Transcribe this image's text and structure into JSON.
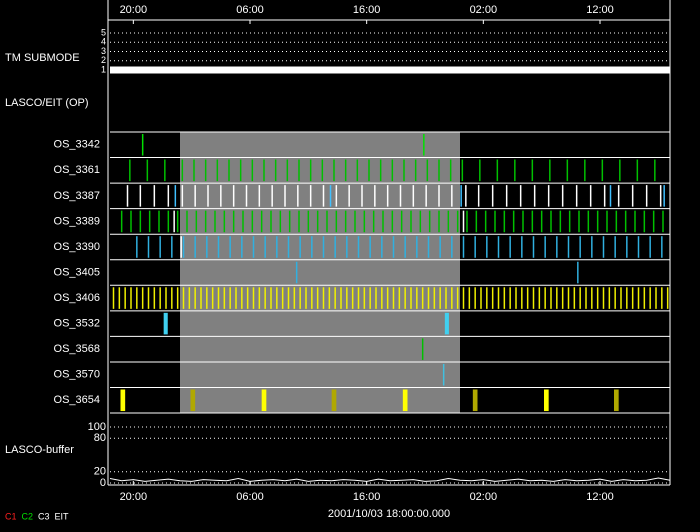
{
  "chart_data": {
    "type": "timeline",
    "xlim": [
      0,
      48
    ],
    "xticks": [
      {
        "value": 2,
        "label": "20:00"
      },
      {
        "value": 12,
        "label": "06:00"
      },
      {
        "value": 22,
        "label": "16:00"
      },
      {
        "value": 32,
        "label": "02:00"
      },
      {
        "value": 42,
        "label": "12:00"
      }
    ],
    "start_time": "2001/10/03 18:00:00.000",
    "tm_submode": {
      "label": "TM SUBMODE",
      "ylim": [
        1,
        5
      ],
      "yticks": [
        1,
        2,
        3,
        4,
        5
      ],
      "x": [
        0,
        48
      ],
      "values": [
        1,
        1
      ],
      "color": "#ffffff"
    },
    "section_label": "LASCO/EIT (OP)",
    "shade": {
      "x": [
        6,
        30
      ],
      "color": "#808080"
    },
    "rows": [
      {
        "label": "OS_3342",
        "marks": [
          {
            "color": "#00e000",
            "x": [
              2.8,
              26.9
            ]
          }
        ]
      },
      {
        "label": "OS_3361",
        "marks": [
          {
            "color": "#00c000",
            "x": [
              1.7,
              3.2,
              4.7,
              6.2,
              7.2,
              8.2,
              9.2,
              10.2,
              11.2,
              12.2,
              13.2,
              14.2,
              15.2,
              16.2,
              17.2,
              18.2,
              19.2,
              20.2,
              21.2,
              22.2,
              23.2,
              24.2,
              25.2,
              26.2,
              27.2,
              28.2,
              29.2,
              30.2,
              31.7,
              33.2,
              34.7,
              36.2,
              37.7,
              39.2,
              40.7,
              42.2,
              43.7,
              45.2,
              46.7
            ]
          }
        ]
      },
      {
        "label": "OS_3387",
        "marks": [
          {
            "color": "#ffffff",
            "x": [
              1.5,
              2.6,
              3.8,
              5.0,
              6.2,
              7.3,
              8.4,
              9.5,
              10.6,
              11.7,
              12.8,
              13.9,
              15.0,
              16.1,
              17.2,
              18.3,
              19.4,
              20.5,
              21.6,
              22.7,
              23.8,
              24.9,
              26.0,
              27.1,
              28.2,
              29.3,
              30.5,
              31.6,
              32.8,
              34.0,
              35.2,
              36.4,
              37.6,
              38.8,
              40.0,
              41.2,
              42.4,
              43.6,
              44.8,
              46.0,
              47.2
            ]
          },
          {
            "color": "#40c0ff",
            "x": [
              5.6,
              18.9,
              30.1,
              42.9,
              47.5
            ]
          }
        ]
      },
      {
        "label": "OS_3389",
        "marks": [
          {
            "color": "#00c000",
            "x": [
              1.0,
              1.8,
              2.6,
              3.4,
              4.2,
              5.0,
              5.8,
              6.6,
              7.4,
              8.2,
              9.0,
              9.8,
              10.6,
              11.4,
              12.2,
              13.0,
              13.8,
              14.6,
              15.4,
              16.2,
              17.0,
              17.8,
              18.6,
              19.4,
              20.2,
              21.0,
              21.8,
              22.6,
              23.4,
              24.2,
              25.0,
              25.8,
              26.6,
              27.4,
              28.2,
              29.0,
              29.8,
              30.6,
              31.4,
              32.2,
              33.0,
              33.8,
              34.6,
              35.4,
              36.2,
              37.0,
              37.8,
              38.6,
              39.4,
              40.2,
              41.0,
              41.8,
              42.6,
              43.4,
              44.2,
              45.0,
              45.8,
              46.6,
              47.4
            ]
          },
          {
            "color": "#ffffff",
            "x": [
              5.5,
              30.3
            ]
          }
        ]
      },
      {
        "label": "OS_3390",
        "marks": [
          {
            "color": "#30b0e0",
            "x": [
              2.3,
              3.3,
              4.3,
              5.3,
              6.3,
              7.3,
              8.3,
              9.3,
              10.3,
              11.3,
              12.3,
              13.3,
              14.3,
              15.3,
              16.3,
              17.3,
              18.3,
              19.3,
              20.3,
              21.3,
              22.3,
              23.3,
              24.3,
              25.3,
              26.3,
              27.3,
              28.3,
              29.3,
              30.3,
              31.3,
              32.3,
              33.3,
              34.3,
              35.3,
              36.3,
              37.3,
              38.3,
              39.3,
              40.3,
              41.3,
              42.3,
              43.3,
              44.3,
              45.3,
              46.3,
              47.3
            ]
          },
          {
            "color": "#ffffff",
            "x": [
              6.1
            ]
          }
        ]
      },
      {
        "label": "OS_3405",
        "marks": [
          {
            "color": "#30b0e0",
            "x": [
              16.0,
              40.1
            ]
          }
        ]
      },
      {
        "label": "OS_3406",
        "marks": [
          {
            "color": "#f0f000",
            "x": [
              0.3,
              0.8,
              1.3,
              1.8,
              2.3,
              2.8,
              3.3,
              3.8,
              4.3,
              4.8,
              5.3,
              5.8,
              6.3,
              6.8,
              7.3,
              7.8,
              8.3,
              8.8,
              9.3,
              9.8,
              10.3,
              10.8,
              11.3,
              11.8,
              12.3,
              12.8,
              13.3,
              13.8,
              14.3,
              14.8,
              15.3,
              15.8,
              16.3,
              16.8,
              17.3,
              17.8,
              18.3,
              18.8,
              19.3,
              19.8,
              20.3,
              20.8,
              21.3,
              21.8,
              22.3,
              22.8,
              23.3,
              23.8,
              24.3,
              24.8,
              25.3,
              25.8,
              26.3,
              26.8,
              27.3,
              27.8,
              28.3,
              28.8,
              29.3,
              29.8,
              30.3,
              30.8,
              31.3,
              31.8,
              32.3,
              32.8,
              33.3,
              33.8,
              34.3,
              34.8,
              35.3,
              35.8,
              36.3,
              36.8,
              37.3,
              37.8,
              38.3,
              38.8,
              39.3,
              39.8,
              40.3,
              40.8,
              41.3,
              41.8,
              42.3,
              42.8,
              43.3,
              43.8,
              44.3,
              44.8,
              45.3,
              45.8,
              46.3,
              46.8,
              47.3,
              47.8
            ]
          }
        ]
      },
      {
        "label": "OS_3532",
        "marks": [
          {
            "color": "#40d0f0",
            "x": [
              4.6,
              28.7
            ],
            "duration": 0.35
          }
        ]
      },
      {
        "label": "OS_3568",
        "marks": [
          {
            "color": "#00c000",
            "x": [
              26.8
            ]
          }
        ]
      },
      {
        "label": "OS_3570",
        "marks": [
          {
            "color": "#40c0e0",
            "x": [
              28.6
            ]
          }
        ]
      },
      {
        "label": "OS_3654",
        "marks": [
          {
            "color": "#ffff00",
            "x": [
              0.9,
              13.0,
              25.1,
              37.2
            ],
            "duration": 0.4
          },
          {
            "color": "#b0a800",
            "x": [
              6.9,
              19.0,
              31.1,
              43.2
            ],
            "duration": 0.4
          }
        ]
      }
    ],
    "buffer": {
      "label": "LASCO-buffer",
      "ylim": [
        0,
        100
      ],
      "yticks": [
        0,
        20,
        80,
        100
      ],
      "color": "#ffffff",
      "x": [
        0,
        1,
        2,
        3,
        4,
        5,
        6,
        7,
        8,
        9,
        10,
        11,
        12,
        13,
        14,
        15,
        16,
        17,
        18,
        19,
        20,
        21,
        22,
        23,
        24,
        25,
        26,
        27,
        28,
        29,
        30,
        31,
        32,
        33,
        34,
        35,
        36,
        37,
        38,
        39,
        40,
        41,
        42,
        43,
        44,
        45,
        46,
        47,
        48
      ],
      "values": [
        8,
        4,
        6,
        3,
        5,
        7,
        4,
        3,
        6,
        5,
        4,
        8,
        3,
        5,
        6,
        4,
        7,
        3,
        5,
        4,
        6,
        5,
        3,
        7,
        4,
        5,
        6,
        3,
        4,
        8,
        5,
        4,
        6,
        3,
        5,
        7,
        4,
        5,
        3,
        6,
        4,
        5,
        7,
        3,
        6,
        4,
        5,
        9,
        5
      ]
    },
    "legend": [
      {
        "name": "C1",
        "color": "#ff2020"
      },
      {
        "name": "C2",
        "color": "#00e000"
      },
      {
        "name": "C3",
        "color": "#ffffff"
      },
      {
        "name": "EIT",
        "color": "#ffffff"
      }
    ]
  }
}
